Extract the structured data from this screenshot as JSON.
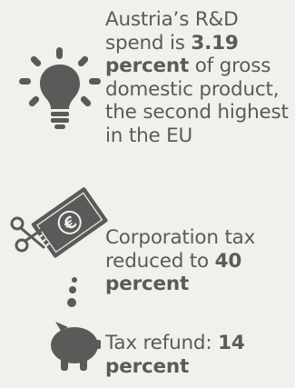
{
  "facts": [
    {
      "icon": "lightbulb-icon",
      "text_before": "Austria’s R&D spend is ",
      "highlight_1": "3.19",
      "text_mid": " ",
      "highlight_2": "percent",
      "text_after": " of gross domestic product, the second highest in the EU"
    },
    {
      "icon": "euro-banknote-scissors-icon",
      "text_before": "Corporation tax reduced to ",
      "highlight": "40 percent"
    },
    {
      "icon": "piggy-bank-icon",
      "text_before": "Tax refund: ",
      "highlight": "14 percent"
    }
  ],
  "colors": {
    "background": "#f1f0ed",
    "text": "#5a5a59",
    "icon": "#5a5a59"
  }
}
